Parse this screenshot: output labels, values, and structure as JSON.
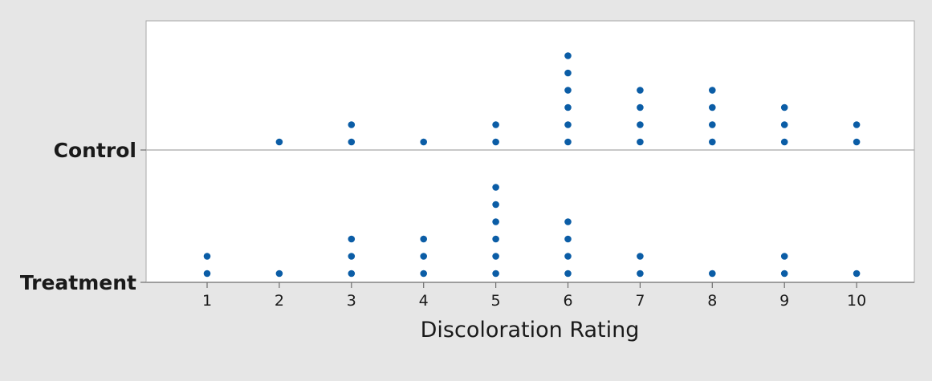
{
  "chart_data": {
    "type": "scatter",
    "subtype": "dotplot",
    "title": "",
    "xlabel": "Discoloration Rating",
    "ylabel": "",
    "x_ticks": [
      1,
      2,
      3,
      4,
      5,
      6,
      7,
      8,
      9,
      10
    ],
    "xlim": [
      0.2,
      10.85
    ],
    "grid": false,
    "legend": "none",
    "dot_color": "#0b5da6",
    "categories": [
      "Control",
      "Treatment"
    ],
    "series": [
      {
        "name": "Control",
        "counts": [
          {
            "x": 2,
            "count": 1
          },
          {
            "x": 3,
            "count": 2
          },
          {
            "x": 4,
            "count": 1
          },
          {
            "x": 5,
            "count": 2
          },
          {
            "x": 6,
            "count": 6
          },
          {
            "x": 7,
            "count": 4
          },
          {
            "x": 8,
            "count": 4
          },
          {
            "x": 9,
            "count": 3
          },
          {
            "x": 10,
            "count": 2
          }
        ]
      },
      {
        "name": "Treatment",
        "counts": [
          {
            "x": 1,
            "count": 2
          },
          {
            "x": 2,
            "count": 1
          },
          {
            "x": 3,
            "count": 3
          },
          {
            "x": 4,
            "count": 3
          },
          {
            "x": 5,
            "count": 6
          },
          {
            "x": 6,
            "count": 4
          },
          {
            "x": 7,
            "count": 2
          },
          {
            "x": 8,
            "count": 1
          },
          {
            "x": 9,
            "count": 2
          },
          {
            "x": 10,
            "count": 1
          }
        ]
      }
    ]
  }
}
